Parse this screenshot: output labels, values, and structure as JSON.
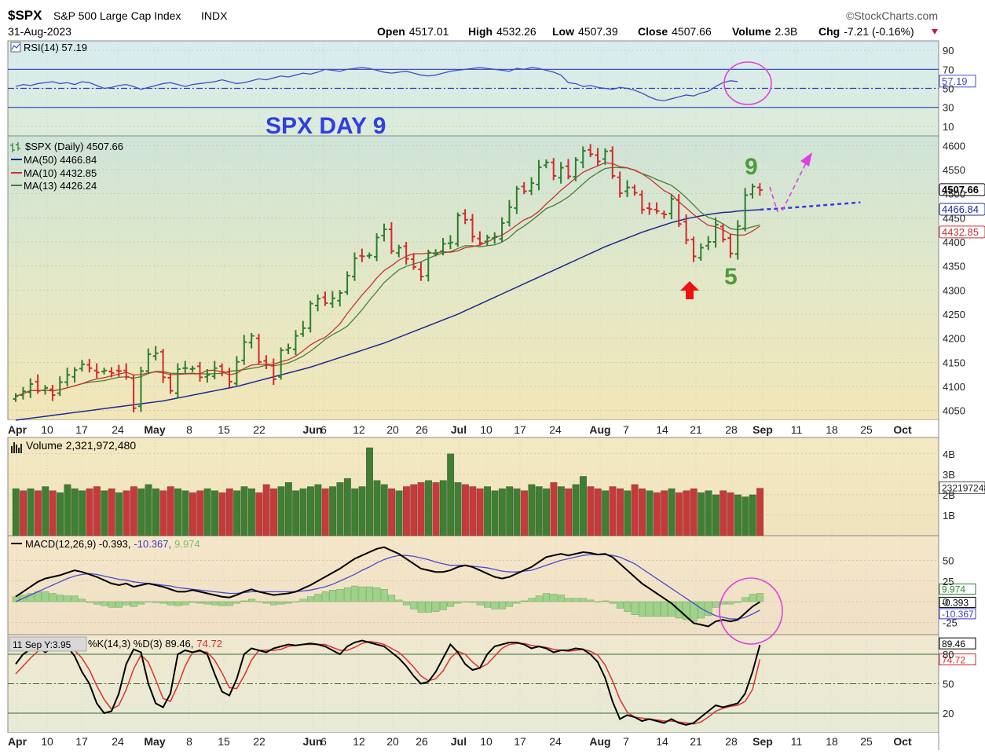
{
  "header": {
    "symbol": "$SPX",
    "name": "S&P 500 Large Cap Index",
    "exchange": "INDX",
    "date": "31-Aug-2023",
    "brand": "©StockCharts.com",
    "open_label": "Open",
    "open": "4517.01",
    "high_label": "High",
    "high": "4532.26",
    "low_label": "Low",
    "low": "4507.39",
    "close_label": "Close",
    "close": "4507.66",
    "volume_label": "Volume",
    "volume": "2.3B",
    "chg_label": "Chg",
    "chg": "-7.21 (-0.16%)"
  },
  "colors": {
    "up": "#2e7d2e",
    "down": "#d42a2a",
    "ma50": "#1c2c8f",
    "ma10": "#c83232",
    "ma13": "#4a7f3a",
    "rsi": "#3e4fc8",
    "magenta": "#e040e0",
    "blue_text": "#2f3fe0",
    "green_text": "#4f9a3a",
    "arrow": "#ee1111"
  },
  "annotations": {
    "title": "SPX DAY 9",
    "nine": "9",
    "five": "5"
  },
  "date_axis": [
    "Apr",
    "10",
    "17",
    "24",
    "May",
    "8",
    "15",
    "22",
    "Jun",
    "6",
    "12",
    "20",
    "26",
    "Jul",
    "10",
    "17",
    "24",
    "Aug",
    "7",
    "14",
    "21",
    "28",
    "Sep",
    "11",
    "18",
    "25",
    "Oct"
  ],
  "chart_data": [
    {
      "type": "line",
      "panel": "rsi",
      "label": "RSI(14) 57.19",
      "ticks": [
        "90",
        "70",
        "50",
        "30",
        "10"
      ],
      "tick_values": [
        90,
        70,
        50,
        30,
        10
      ],
      "ylim": [
        0,
        100
      ],
      "levels": [
        70,
        50,
        30
      ],
      "last_label": "57.19",
      "values": [
        52,
        54,
        53,
        55,
        56,
        57,
        55,
        56,
        54,
        57,
        56,
        53,
        50,
        51,
        53,
        54,
        52,
        49,
        51,
        53,
        55,
        56,
        54,
        52,
        54,
        55,
        56,
        57,
        59,
        57,
        55,
        56,
        58,
        60,
        59,
        61,
        63,
        62,
        64,
        66,
        65,
        67,
        70,
        69,
        68,
        70,
        71,
        72,
        71,
        69,
        67,
        66,
        67,
        68,
        66,
        64,
        63,
        64,
        66,
        68,
        69,
        70,
        71,
        72,
        71,
        70,
        69,
        68,
        71,
        70,
        72,
        71,
        69,
        67,
        64,
        56,
        55,
        52,
        53,
        51,
        50,
        49,
        51,
        50,
        48,
        45,
        41,
        38,
        37,
        39,
        41,
        43,
        42,
        45,
        47,
        52,
        56,
        58,
        57.19
      ]
    },
    {
      "type": "ohlc",
      "panel": "price",
      "legend": [
        "$SPX (Daily) 4507.66",
        "MA(50) 4466.84",
        "MA(10) 4432.85",
        "MA(13) 4426.24"
      ],
      "ticks": [
        "4600",
        "4550",
        "4500",
        "4450",
        "4400",
        "4350",
        "4300",
        "4250",
        "4200",
        "4150",
        "4100",
        "4050"
      ],
      "tick_values": [
        4600,
        4550,
        4500,
        4450,
        4400,
        4350,
        4300,
        4250,
        4200,
        4150,
        4100,
        4050
      ],
      "ylim": [
        4030,
        4620
      ],
      "last_price_label": "4507.66",
      "ma50_label": "4466.84",
      "ma10_label": "4432.85",
      "closes": [
        4080,
        4090,
        4105,
        4091,
        4097,
        4082,
        4109,
        4124,
        4134,
        4146,
        4138,
        4129,
        4133,
        4128,
        4132,
        4120,
        4055,
        4132,
        4167,
        4169,
        4119,
        4091,
        4136,
        4138,
        4137,
        4119,
        4124,
        4138,
        4130,
        4110,
        4151,
        4192,
        4205,
        4151,
        4145,
        4115,
        4175,
        4180,
        4205,
        4221,
        4272,
        4282,
        4273,
        4283,
        4294,
        4330,
        4366,
        4370,
        4372,
        4409,
        4426,
        4381,
        4388,
        4365,
        4348,
        4328,
        4378,
        4376,
        4396,
        4399,
        4455,
        4446,
        4411,
        4398,
        4409,
        4411,
        4439,
        4472,
        4510,
        4505,
        4522,
        4555,
        4565,
        4537,
        4554,
        4536,
        4570,
        4589,
        4582,
        4567,
        4588,
        4537,
        4501,
        4513,
        4502,
        4467,
        4468,
        4464,
        4457,
        4489,
        4437,
        4404,
        4370,
        4388,
        4400,
        4436,
        4405,
        4376,
        4433,
        4497,
        4515,
        4507.66
      ],
      "ma50": [
        4030,
        4032,
        4034,
        4036,
        4038,
        4040,
        4042,
        4044,
        4046,
        4048,
        4050,
        4052,
        4054,
        4056,
        4058,
        4060,
        4062,
        4064,
        4066,
        4068,
        4070,
        4073,
        4076,
        4079,
        4082,
        4085,
        4088,
        4091,
        4094,
        4097,
        4100,
        4104,
        4108,
        4112,
        4116,
        4120,
        4124,
        4128,
        4132,
        4136,
        4140,
        4145,
        4150,
        4155,
        4160,
        4165,
        4170,
        4175,
        4180,
        4185,
        4190,
        4196,
        4202,
        4208,
        4214,
        4220,
        4226,
        4232,
        4238,
        4244,
        4250,
        4257,
        4264,
        4271,
        4278,
        4285,
        4292,
        4299,
        4306,
        4313,
        4320,
        4327,
        4334,
        4341,
        4348,
        4355,
        4362,
        4369,
        4376,
        4383,
        4390,
        4396,
        4402,
        4408,
        4414,
        4420,
        4425,
        4430,
        4435,
        4440,
        4444,
        4448,
        4451,
        4454,
        4457,
        4459,
        4461,
        4462,
        4464,
        4465,
        4466,
        4466.84
      ],
      "projection": [
        4466.84,
        4470,
        4474,
        4478,
        4482
      ],
      "label_nine": "9",
      "label_five": "5"
    },
    {
      "type": "bar",
      "panel": "volume",
      "label": "Volume 2,321,972,480",
      "ticks": [
        "4B",
        "3B",
        "2B",
        "1B"
      ],
      "tick_values": [
        4,
        3,
        2,
        1
      ],
      "ylim": [
        0,
        4.8
      ],
      "last_label": "2321972480",
      "values": [
        2.3,
        2.2,
        2.3,
        2.2,
        2.4,
        2.2,
        2.1,
        2.5,
        2.3,
        2.2,
        2.3,
        2.4,
        2.2,
        2.3,
        2.1,
        2.2,
        2.4,
        2.3,
        2.5,
        2.3,
        2.2,
        2.4,
        2.3,
        2.2,
        2.1,
        2.2,
        2.3,
        2.2,
        2.1,
        2.3,
        2.2,
        2.4,
        2.3,
        2.1,
        2.5,
        2.3,
        2.4,
        2.6,
        2.2,
        2.3,
        2.4,
        2.5,
        2.3,
        2.4,
        2.6,
        2.8,
        2.3,
        2.4,
        4.3,
        2.7,
        2.5,
        2.3,
        2.2,
        2.4,
        2.5,
        2.6,
        2.7,
        2.6,
        2.7,
        4.0,
        2.6,
        2.5,
        2.4,
        2.3,
        2.4,
        2.2,
        2.3,
        2.4,
        2.3,
        2.2,
        2.5,
        2.4,
        2.3,
        2.6,
        2.4,
        2.3,
        2.5,
        2.9,
        2.4,
        2.3,
        2.2,
        2.4,
        2.3,
        2.2,
        2.5,
        2.3,
        2.2,
        2.1,
        2.2,
        2.3,
        2.1,
        2.2,
        2.3,
        2.1,
        2.2,
        2.0,
        2.2,
        2.1,
        2.0,
        1.9,
        2.0,
        2.32
      ],
      "up": [
        1,
        0,
        1,
        0,
        1,
        0,
        1,
        1,
        1,
        1,
        0,
        0,
        1,
        0,
        1,
        0,
        0,
        1,
        1,
        1,
        0,
        0,
        1,
        1,
        0,
        0,
        1,
        1,
        0,
        0,
        1,
        1,
        1,
        0,
        0,
        0,
        1,
        1,
        1,
        1,
        1,
        1,
        0,
        1,
        1,
        1,
        1,
        1,
        1,
        1,
        1,
        0,
        1,
        0,
        0,
        0,
        1,
        0,
        1,
        1,
        1,
        0,
        0,
        0,
        1,
        1,
        1,
        1,
        1,
        0,
        1,
        1,
        1,
        0,
        1,
        0,
        1,
        1,
        0,
        0,
        1,
        0,
        0,
        1,
        0,
        0,
        1,
        0,
        0,
        1,
        0,
        0,
        0,
        1,
        1,
        1,
        0,
        0,
        1,
        1,
        1,
        0
      ]
    },
    {
      "type": "line",
      "panel": "macd",
      "label": "MACD(12,26,9) -0.393,",
      "signal_label": "-10.367,",
      "hist_label": "9.974",
      "ticks": [
        "50",
        "25",
        "0",
        "-25"
      ],
      "tick_values": [
        50,
        25,
        0,
        -25
      ],
      "ylim": [
        -40,
        80
      ],
      "last_labels": [
        "9.974",
        "-0.393",
        "-10.367"
      ],
      "macd": [
        6,
        12,
        18,
        24,
        28,
        30,
        32,
        35,
        38,
        36,
        33,
        30,
        26,
        22,
        20,
        22,
        18,
        20,
        22,
        20,
        18,
        15,
        12,
        12,
        14,
        12,
        10,
        8,
        6,
        5,
        8,
        12,
        15,
        12,
        10,
        8,
        9,
        10,
        12,
        16,
        20,
        25,
        30,
        35,
        40,
        46,
        52,
        56,
        60,
        64,
        66,
        62,
        58,
        52,
        46,
        40,
        38,
        36,
        36,
        38,
        42,
        44,
        42,
        38,
        34,
        30,
        28,
        30,
        34,
        38,
        42,
        48,
        54,
        56,
        58,
        56,
        58,
        60,
        59,
        57,
        58,
        54,
        46,
        38,
        30,
        22,
        16,
        10,
        4,
        -2,
        -10,
        -18,
        -26,
        -28,
        -30,
        -24,
        -22,
        -24,
        -22,
        -14,
        -6,
        -0.393
      ],
      "signal": [
        0,
        4,
        8,
        12,
        16,
        20,
        24,
        28,
        31,
        33,
        34,
        33,
        31,
        29,
        27,
        26,
        24,
        23,
        22,
        21,
        20,
        19,
        17,
        16,
        15,
        14,
        13,
        12,
        11,
        10,
        10,
        11,
        12,
        12,
        12,
        12,
        12,
        12,
        12,
        13,
        14,
        16,
        18,
        21,
        25,
        29,
        33,
        38,
        42,
        47,
        51,
        54,
        56,
        56,
        55,
        53,
        51,
        48,
        46,
        44,
        44,
        44,
        43,
        42,
        41,
        39,
        37,
        36,
        36,
        37,
        38,
        41,
        44,
        47,
        50,
        52,
        54,
        56,
        57,
        57,
        57,
        56,
        54,
        50,
        46,
        40,
        34,
        28,
        22,
        16,
        10,
        4,
        -2,
        -8,
        -13,
        -17,
        -19,
        -21,
        -21,
        -19,
        -15,
        -10.367
      ]
    },
    {
      "type": "line",
      "panel": "stochastic",
      "label": "%K(14,3) %D(3) 89.46,",
      "d_label": "74.72",
      "tooltip": "11 Sep Y:3.95",
      "ticks": [
        "80",
        "50",
        "20"
      ],
      "tick_values": [
        80,
        50,
        20
      ],
      "ylim": [
        0,
        100
      ],
      "last_labels": [
        "89.46",
        "74.72"
      ],
      "k": [
        70,
        80,
        85,
        88,
        82,
        86,
        84,
        88,
        78,
        62,
        50,
        30,
        20,
        22,
        40,
        70,
        85,
        82,
        50,
        30,
        26,
        40,
        80,
        84,
        82,
        84,
        80,
        60,
        42,
        38,
        55,
        80,
        86,
        84,
        82,
        86,
        88,
        90,
        89,
        90,
        91,
        90,
        88,
        84,
        80,
        88,
        92,
        94,
        92,
        90,
        88,
        82,
        76,
        68,
        58,
        50,
        52,
        62,
        76,
        90,
        82,
        70,
        64,
        66,
        80,
        88,
        90,
        92,
        92,
        90,
        86,
        88,
        86,
        82,
        84,
        84,
        86,
        85,
        80,
        72,
        56,
        32,
        14,
        18,
        16,
        12,
        14,
        12,
        10,
        14,
        10,
        8,
        10,
        16,
        22,
        28,
        26,
        28,
        30,
        40,
        62,
        89.46
      ],
      "d": [
        60,
        68,
        76,
        83,
        85,
        85,
        84,
        86,
        84,
        76,
        64,
        48,
        34,
        24,
        28,
        44,
        65,
        79,
        72,
        54,
        35,
        32,
        48,
        68,
        82,
        83,
        82,
        74,
        61,
        46,
        45,
        58,
        74,
        84,
        84,
        84,
        85,
        88,
        89,
        90,
        90,
        90,
        90,
        87,
        84,
        84,
        87,
        91,
        93,
        92,
        90,
        86,
        82,
        75,
        67,
        58,
        53,
        55,
        63,
        76,
        83,
        80,
        72,
        66,
        70,
        78,
        86,
        90,
        91,
        91,
        89,
        88,
        87,
        85,
        84,
        83,
        84,
        85,
        83,
        79,
        69,
        53,
        34,
        21,
        16,
        15,
        14,
        13,
        12,
        12,
        11,
        10,
        9,
        11,
        16,
        22,
        25,
        27,
        28,
        32,
        44,
        74.72
      ]
    }
  ]
}
